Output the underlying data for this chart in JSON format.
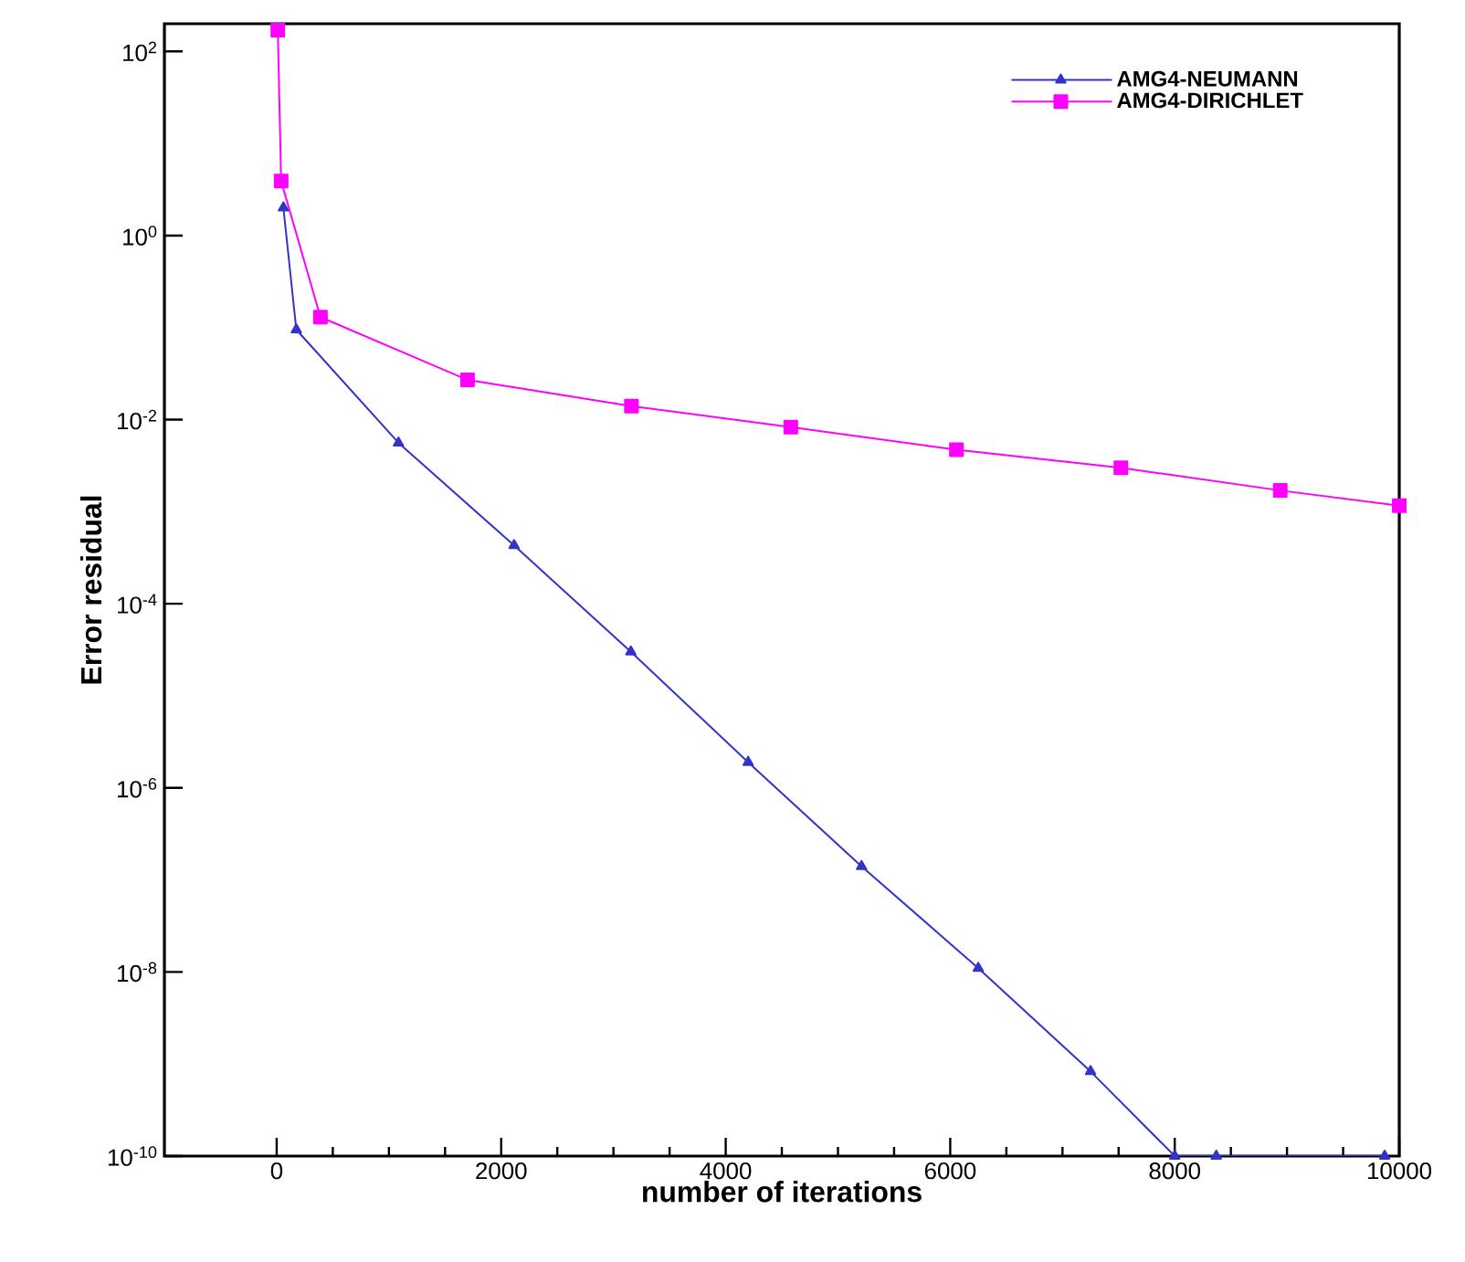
{
  "chart_data": {
    "type": "line",
    "xlabel": "number of iterations",
    "ylabel": "Error residual",
    "log": "y",
    "legend": "top right",
    "grid": false,
    "line_style": "solid",
    "xlim": [
      -1000,
      10000
    ],
    "xticks": [
      0,
      2000,
      4000,
      6000,
      8000,
      10000
    ],
    "ylim": [
      1e-10,
      200
    ],
    "yticks": [
      {
        "value": 1e-10,
        "label": "10$^{-10}$"
      },
      {
        "value": 1e-08,
        "label": "10$^{-8}$"
      },
      {
        "value": 1e-06,
        "label": "10$^{-6}$"
      },
      {
        "value": 0.0001,
        "label": "10$^{-4}$"
      },
      {
        "value": 0.01,
        "label": "10$^{-2}$"
      },
      {
        "value": 1,
        "label": "10$^{0}$"
      },
      {
        "value": 100,
        "label": "10$^{2}$"
      }
    ],
    "series": [
      {
        "name": "AMG4-NEUMANN",
        "color": "#3333cc",
        "marker": "triangle",
        "x": [
          60,
          175,
          1085,
          2115,
          3155,
          4200,
          5210,
          6250,
          7250,
          8000,
          8370,
          9870
        ],
        "values": [
          2,
          0.095,
          0.0056,
          0.00043,
          3e-05,
          1.9e-06,
          1.4e-07,
          1.1e-08,
          8.3e-10,
          1e-10,
          1e-10,
          1e-10
        ]
      },
      {
        "name": "AMG4-DIRICHLET",
        "color": "#ff00ff",
        "marker": "square",
        "x": [
          10,
          40,
          390,
          1700,
          3160,
          4580,
          6055,
          7520,
          8940,
          10000
        ],
        "values": [
          170,
          3.9,
          0.13,
          0.027,
          0.014,
          0.0083,
          0.0047,
          0.003,
          0.0017,
          0.00116
        ]
      }
    ]
  }
}
